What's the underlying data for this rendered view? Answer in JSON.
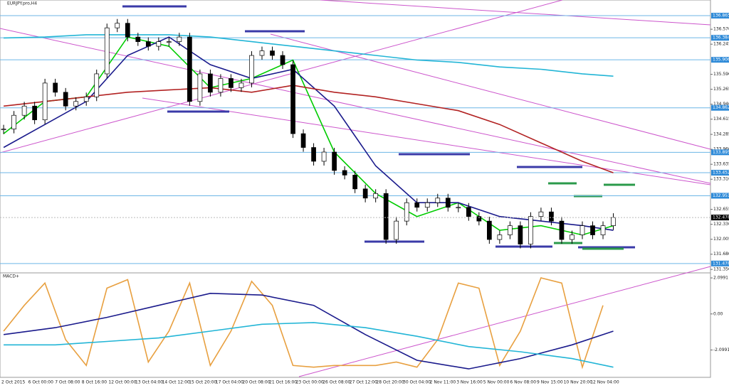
{
  "chart_data": [
    {
      "type": "candlestick",
      "title": "EURJPY.pro,H4",
      "x": [
        0,
        1,
        2,
        3,
        4,
        5,
        6,
        7,
        8,
        9,
        10,
        11,
        12,
        13,
        14,
        15,
        16,
        17,
        18,
        19,
        20,
        21,
        22,
        23,
        24,
        25,
        26,
        27,
        28,
        29,
        30,
        31,
        32,
        33,
        34,
        35,
        36,
        37,
        38,
        39,
        40,
        41,
        42,
        43,
        44,
        45,
        46,
        47,
        48,
        49,
        50,
        51,
        52,
        53,
        54,
        55,
        56,
        57,
        58,
        59
      ],
      "values": [
        134.4,
        134.7,
        134.9,
        134.6,
        135.4,
        135.2,
        134.9,
        135.0,
        135.1,
        135.6,
        136.6,
        136.7,
        136.4,
        136.3,
        136.2,
        136.3,
        136.3,
        136.4,
        135.0,
        135.6,
        135.2,
        135.5,
        135.3,
        135.4,
        136.0,
        136.1,
        136.0,
        135.8,
        134.3,
        134.0,
        133.7,
        133.9,
        133.5,
        133.4,
        133.1,
        132.9,
        133.0,
        132.0,
        132.4,
        132.8,
        132.7,
        132.8,
        132.9,
        132.7,
        132.7,
        132.5,
        132.4,
        132.0,
        132.1,
        132.3,
        131.9,
        132.5,
        132.6,
        132.4,
        132.0,
        132.1,
        132.3,
        132.1,
        132.3,
        132.478
      ],
      "lines": [
        {
          "color": "#00cc00",
          "x": [
            0,
            4,
            8,
            12,
            16,
            20,
            24,
            28,
            32,
            36,
            40,
            44,
            48,
            52,
            56,
            59
          ],
          "values": [
            134.3,
            135.0,
            135.1,
            136.4,
            136.2,
            135.3,
            135.5,
            135.9,
            133.9,
            133.0,
            132.5,
            132.8,
            132.2,
            132.3,
            132.1,
            132.3
          ]
        },
        {
          "color": "#1a1a8c",
          "x": [
            0,
            4,
            8,
            12,
            16,
            20,
            24,
            28,
            32,
            36,
            40,
            44,
            48,
            52,
            56,
            59
          ],
          "values": [
            134.0,
            134.5,
            135.0,
            136.0,
            136.4,
            135.8,
            135.5,
            135.7,
            134.9,
            133.6,
            132.8,
            132.8,
            132.5,
            132.4,
            132.3,
            132.2
          ]
        },
        {
          "color": "#b22222",
          "x": [
            0,
            4,
            8,
            12,
            16,
            20,
            24,
            28,
            32,
            36,
            40,
            44,
            48,
            52,
            56,
            59
          ],
          "values": [
            134.9,
            135.0,
            135.1,
            135.2,
            135.25,
            135.3,
            135.2,
            135.35,
            135.2,
            135.1,
            134.95,
            134.8,
            134.5,
            134.1,
            133.7,
            133.45
          ]
        },
        {
          "color": "#22b5d6",
          "x": [
            0,
            4,
            8,
            12,
            16,
            20,
            24,
            28,
            32,
            36,
            40,
            44,
            48,
            52,
            56,
            59
          ],
          "values": [
            136.38,
            136.4,
            136.45,
            136.45,
            136.45,
            136.4,
            136.3,
            136.2,
            136.1,
            136.0,
            135.9,
            135.85,
            135.75,
            135.7,
            135.6,
            135.55
          ]
        }
      ],
      "xlim": [
        -0.35,
        68.4
      ],
      "ylim": [
        131.29,
        137.02
      ],
      "yticks": [
        {
          "value": 136.57,
          "label": "136.570"
        },
        {
          "value": 136.245,
          "label": "136.245"
        },
        {
          "value": 135.59,
          "label": "135.590"
        },
        {
          "value": 135.265,
          "label": "135.265"
        },
        {
          "value": 134.94,
          "label": "134.940"
        },
        {
          "value": 134.615,
          "label": "134.615"
        },
        {
          "value": 134.285,
          "label": "134.285"
        },
        {
          "value": 133.96,
          "label": "133.960"
        },
        {
          "value": 133.635,
          "label": "133.635"
        },
        {
          "value": 133.31,
          "label": "133.310"
        },
        {
          "value": 132.655,
          "label": "132.655"
        },
        {
          "value": 132.33,
          "label": "132.330"
        },
        {
          "value": 132.005,
          "label": "132.005"
        },
        {
          "value": 131.68,
          "label": "131.680"
        },
        {
          "value": 131.35,
          "label": "131.350"
        }
      ],
      "levels": [
        {
          "value": 136.865,
          "label": "136.865"
        },
        {
          "value": 136.384,
          "label": "136.384"
        },
        {
          "value": 135.906,
          "label": "135.906"
        },
        {
          "value": 134.862,
          "label": "134.862"
        },
        {
          "value": 133.895,
          "label": "133.895"
        },
        {
          "value": 133.452,
          "label": "133.452"
        },
        {
          "value": 132.951,
          "label": "132.951"
        },
        {
          "value": 131.478,
          "label": "131.478"
        }
      ],
      "current": {
        "value": 132.478,
        "label": "132.478"
      },
      "time_labels": [
        "2 Oct 2015",
        "6 Oct 00:00",
        "7 Oct 08:00",
        "8 Oct 16:00",
        "12 Oct 00:00",
        "13 Oct 04:00",
        "14 Oct 12:00",
        "15 Oct 20:00",
        "17 Oct 04:00",
        "20 Oct 08:00",
        "21 Oct 16:00",
        "23 Oct 00:00",
        "26 Oct 08:00",
        "27 Oct 12:00",
        "28 Oct 20:00",
        "30 Oct 04:00",
        "2 Nov 11:00",
        "3 Nov 16:00",
        "5 Nov 00:00",
        "6 Nov 08:00",
        "9 Nov 15:00",
        "10 Nov 20:00",
        "12 Nov 04:00"
      ]
    },
    {
      "type": "line",
      "title": "MACD+",
      "series": [
        {
          "color": "#e8a040",
          "x": [
            0,
            2,
            4,
            6,
            8,
            10,
            12,
            14,
            16,
            18,
            20,
            22,
            24,
            26,
            28,
            30,
            32,
            34,
            36,
            38,
            40,
            42,
            44,
            46,
            48,
            50,
            52,
            54,
            56,
            58
          ],
          "values": [
            -1.0,
            0.5,
            1.8,
            -1.5,
            -3.0,
            1.5,
            2.0,
            -2.8,
            -1.0,
            1.8,
            -3.0,
            -1.0,
            1.9,
            0.5,
            -3.0,
            -3.1,
            -3.0,
            -3.0,
            -3.0,
            -2.8,
            -3.1,
            -1.5,
            1.8,
            1.5,
            -3.0,
            -1.0,
            2.1,
            1.8,
            -3.1,
            0.5
          ]
        },
        {
          "color": "#1a1a8c",
          "x": [
            0,
            5,
            10,
            15,
            20,
            25,
            30,
            35,
            40,
            45,
            50,
            55,
            59
          ],
          "values": [
            -1.2,
            -0.8,
            -0.2,
            0.5,
            1.2,
            1.1,
            0.5,
            -1.2,
            -2.7,
            -3.2,
            -2.6,
            -1.8,
            -1.0
          ]
        },
        {
          "color": "#22b5d6",
          "x": [
            0,
            5,
            10,
            15,
            20,
            25,
            30,
            35,
            40,
            45,
            50,
            55,
            59
          ],
          "values": [
            -1.8,
            -1.8,
            -1.6,
            -1.4,
            -1.0,
            -0.6,
            -0.5,
            -0.8,
            -1.3,
            -1.9,
            -2.2,
            -2.6,
            -3.1
          ]
        }
      ],
      "ylim": [
        -3.65,
        2.35
      ],
      "yticks": [
        {
          "value": 2.0991,
          "label": "2.0991"
        },
        {
          "value": 0,
          "label": "0.00"
        },
        {
          "value": -2.0991,
          "label": "-2.0991"
        }
      ]
    }
  ]
}
